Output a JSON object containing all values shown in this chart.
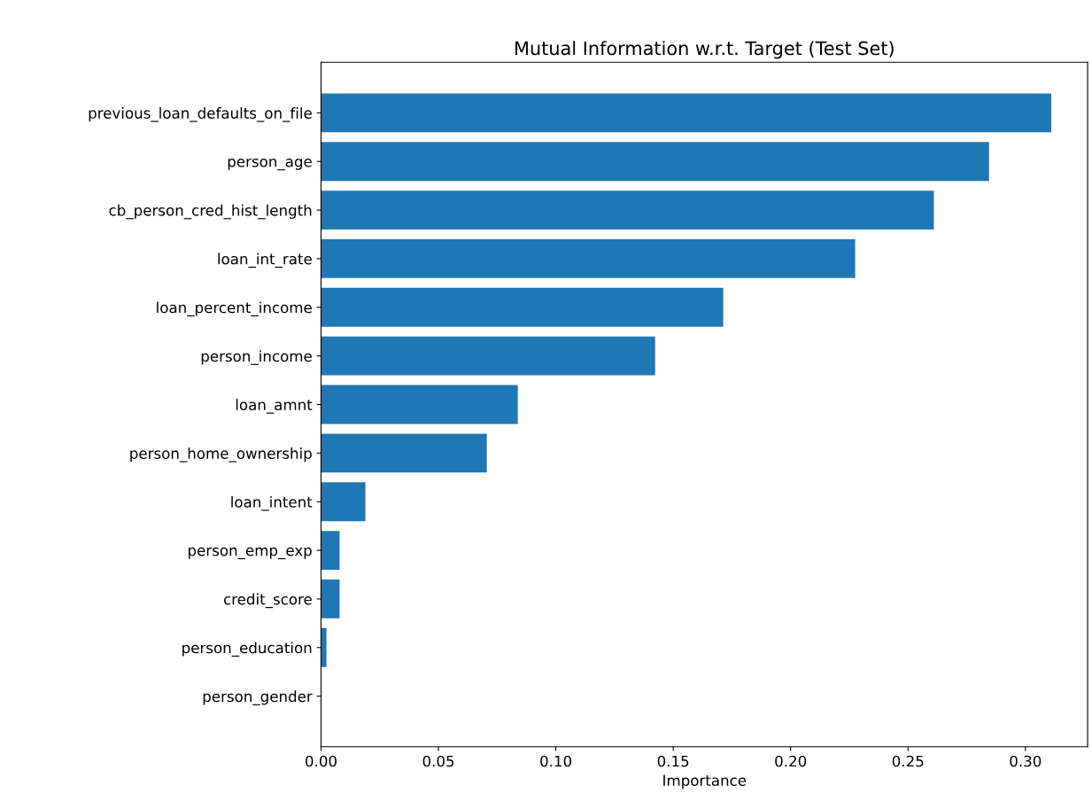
{
  "chart_data": {
    "type": "bar",
    "orientation": "horizontal",
    "title": "Mutual Information w.r.t. Target (Test Set)",
    "xlabel": "Importance",
    "categories": [
      "previous_loan_defaults_on_file",
      "person_age",
      "cb_person_cred_hist_length",
      "loan_int_rate",
      "loan_percent_income",
      "person_income",
      "loan_amnt",
      "person_home_ownership",
      "loan_intent",
      "person_emp_exp",
      "credit_score",
      "person_education",
      "person_gender"
    ],
    "values": [
      0.311,
      0.2845,
      0.261,
      0.2275,
      0.1713,
      0.1423,
      0.0838,
      0.0706,
      0.0189,
      0.0079,
      0.0079,
      0.0023,
      0.0
    ],
    "color": "#1f77b4",
    "xlim": [
      0,
      0.3265
    ],
    "xticks": [
      {
        "value": 0,
        "label": "0.00"
      },
      {
        "value": 0.05,
        "label": "0.05"
      },
      {
        "value": 0.1,
        "label": "0.10"
      },
      {
        "value": 0.15,
        "label": "0.15"
      },
      {
        "value": 0.2,
        "label": "0.20"
      },
      {
        "value": 0.25,
        "label": "0.25"
      },
      {
        "value": 0.3,
        "label": "0.30"
      }
    ]
  }
}
